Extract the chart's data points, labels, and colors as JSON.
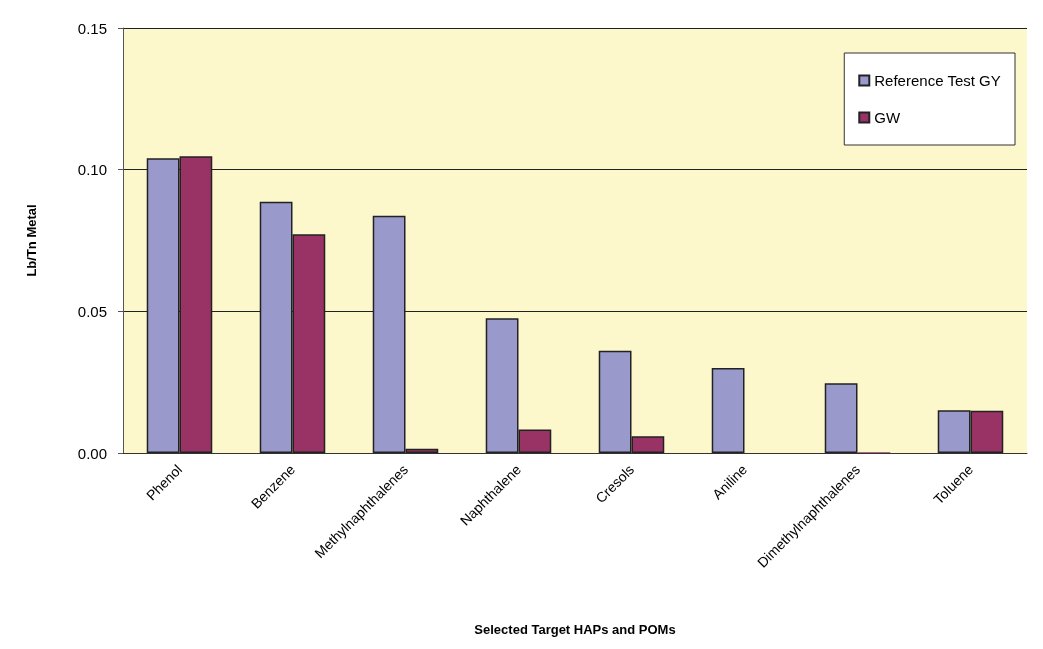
{
  "chart_data": {
    "type": "bar",
    "xlabel": "Selected Target HAPs and POMs",
    "ylabel": "Lb/Tn Metal",
    "categories": [
      "Phenol",
      "Benzene",
      "Methylnaphthalenes",
      "Naphthalene",
      "Cresols",
      "Aniline",
      "Dimethylnaphthalenes",
      "Toluene"
    ],
    "series": [
      {
        "name": "Reference Test GY",
        "color": "#9999cc",
        "values": [
          0.104,
          0.0887,
          0.0837,
          0.0476,
          0.0361,
          0.03,
          0.0246,
          0.0151
        ]
      },
      {
        "name": "GW",
        "color": "#993366",
        "values": [
          0.1047,
          0.0772,
          0.0015,
          0.0083,
          0.0059,
          null,
          0.0003,
          0.0149
        ]
      }
    ],
    "ylim": [
      0,
      0.15
    ],
    "yticks": [
      {
        "value": 0,
        "label": "0.00"
      },
      {
        "value": 0.05,
        "label": "0.05"
      },
      {
        "value": 0.1,
        "label": "0.10"
      },
      {
        "value": 0.15,
        "label": "0.15"
      }
    ],
    "grid": "y",
    "legend": "top right"
  }
}
